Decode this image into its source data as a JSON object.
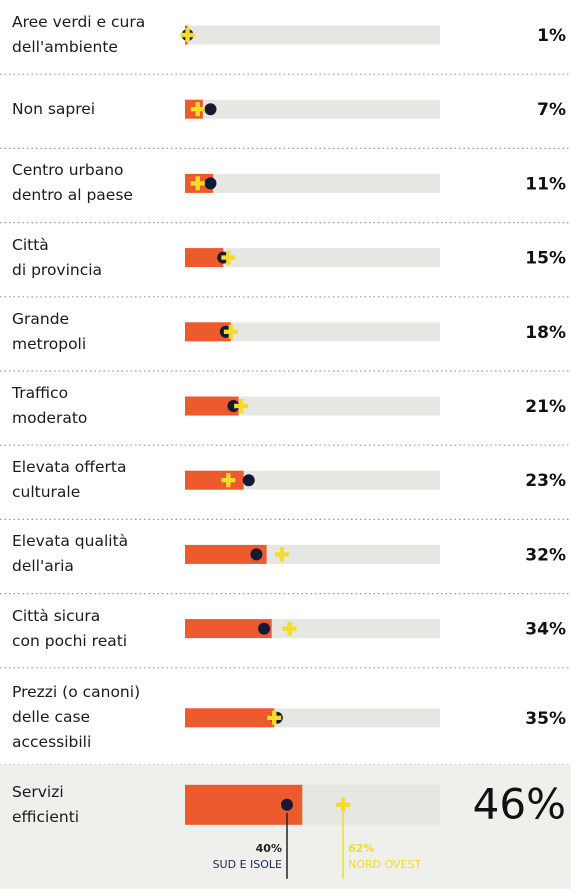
{
  "chart_data": {
    "type": "bar-dot",
    "categories": [
      "Aree verdi e cura\ndell'ambiente",
      "Non saprei",
      "Centro urbano\ndentro al paese",
      "Città\ndi provincia",
      "Grande\nmetropoli",
      "Traffico\nmoderato",
      "Elevata offerta\nculturale",
      "Elevata qualità\ndell'aria",
      "Città sicura\ncon pochi reati",
      "Prezzi (o canoni)\ndelle case\naccessibili",
      "Servizi\nefficienti"
    ],
    "values": [
      1,
      7,
      11,
      15,
      18,
      21,
      23,
      32,
      34,
      35,
      46
    ],
    "value_labels": [
      "1%",
      "7%",
      "11%",
      "15%",
      "18%",
      "21%",
      "23%",
      "32%",
      "34%",
      "35%",
      "46%"
    ],
    "color": "#ec5a2e",
    "track_color": "#e6e6e3",
    "xlim": [
      0,
      100
    ],
    "series": [
      {
        "name": "SUD E ISOLE",
        "color": "#151a33",
        "marker": "dot",
        "values": [
          1,
          10,
          10,
          15,
          16,
          19,
          25,
          28,
          31,
          36,
          40
        ],
        "value_labels": [
          null,
          null,
          null,
          null,
          null,
          null,
          null,
          null,
          null,
          null,
          "40%"
        ]
      },
      {
        "name": "NORD OVEST",
        "color": "#f3dc2a",
        "marker": "cross",
        "values": [
          1,
          5,
          5,
          17,
          18,
          22,
          17,
          38,
          41,
          35,
          62
        ],
        "value_labels": [
          null,
          null,
          null,
          null,
          null,
          null,
          null,
          null,
          null,
          null,
          "62%"
        ]
      }
    ]
  }
}
